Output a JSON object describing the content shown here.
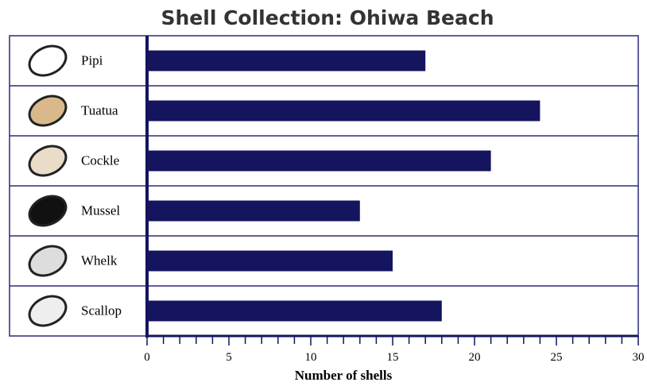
{
  "chart_data": {
    "type": "bar",
    "orientation": "horizontal",
    "title": "Shell Collection: Ohiwa Beach",
    "categories": [
      "Pipi",
      "Tuatua",
      "Cockle",
      "Mussel",
      "Whelk",
      "Scallop"
    ],
    "values": [
      17,
      24,
      21,
      13,
      15,
      18
    ],
    "color": "#14145f",
    "xlabel": "Number of shells",
    "xlim": [
      0,
      30
    ],
    "xticks": [
      0,
      5,
      10,
      15,
      20,
      25,
      30
    ]
  }
}
